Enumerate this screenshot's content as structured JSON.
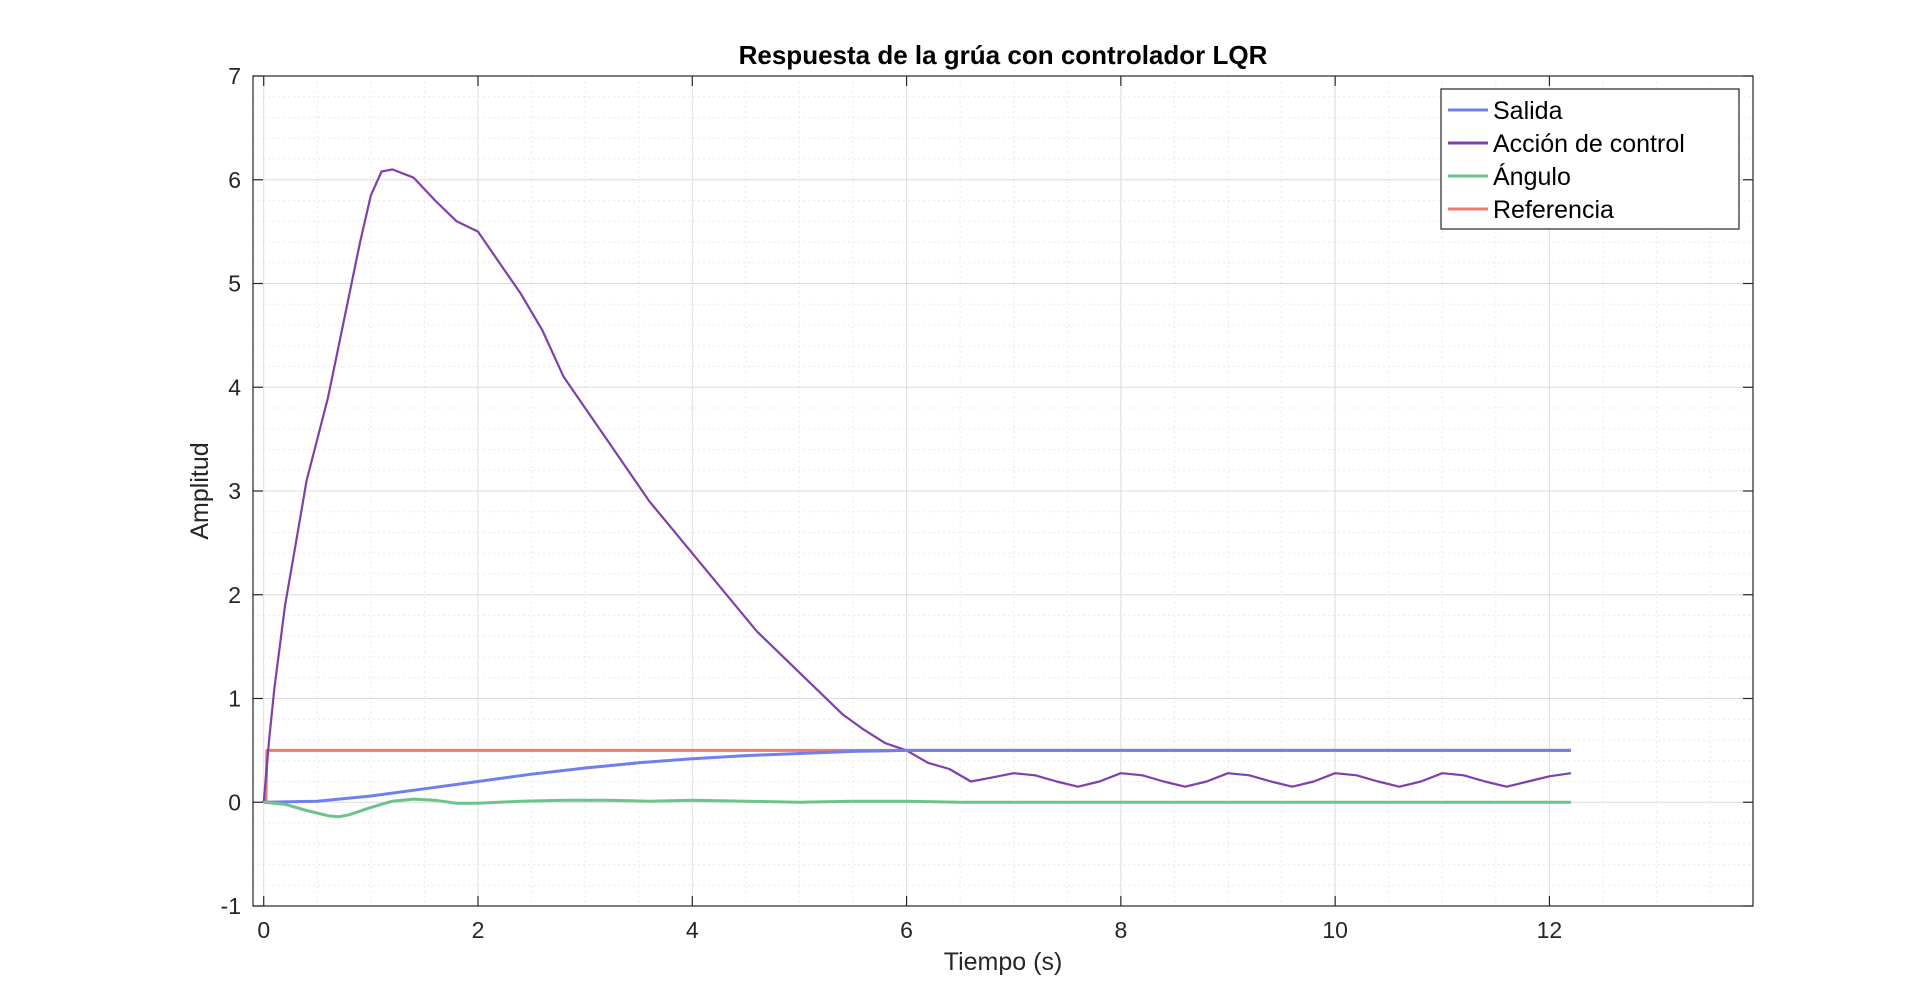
{
  "chart_data": {
    "type": "line",
    "title": "Respuesta de la grúa con controlador LQR",
    "xlabel": "Tiempo (s)",
    "ylabel": "Amplitud",
    "xlim": [
      -0.1,
      13.9
    ],
    "ylim": [
      -1,
      7
    ],
    "xticks": [
      0,
      2,
      4,
      6,
      8,
      10,
      12
    ],
    "yticks": [
      -1,
      0,
      1,
      2,
      3,
      4,
      5,
      6,
      7
    ],
    "grid": true,
    "minor_grid": true,
    "legend_position": "top-right",
    "series": [
      {
        "name": "Salida",
        "color": "#6f7ff0",
        "x": [
          0,
          0.5,
          1,
          1.5,
          2,
          2.5,
          3,
          3.5,
          4,
          4.5,
          5,
          5.5,
          6,
          6.5,
          7,
          8,
          9,
          10,
          11,
          12.2
        ],
        "y": [
          0,
          0.01,
          0.06,
          0.13,
          0.2,
          0.27,
          0.33,
          0.38,
          0.42,
          0.45,
          0.47,
          0.49,
          0.5,
          0.5,
          0.5,
          0.5,
          0.5,
          0.5,
          0.5,
          0.5
        ]
      },
      {
        "name": "Acción de control",
        "color": "#7e3fb0",
        "x": [
          0,
          0.05,
          0.1,
          0.2,
          0.3,
          0.4,
          0.5,
          0.6,
          0.7,
          0.8,
          0.9,
          1.0,
          1.1,
          1.2,
          1.4,
          1.6,
          1.8,
          2.0,
          2.2,
          2.4,
          2.6,
          2.8,
          3.0,
          3.2,
          3.4,
          3.6,
          3.8,
          4.0,
          4.2,
          4.4,
          4.6,
          4.8,
          5.0,
          5.2,
          5.4,
          5.6,
          5.8,
          6.0,
          6.2,
          6.4,
          6.6,
          6.8,
          7.0,
          7.2,
          7.4,
          7.6,
          7.8,
          8.0,
          8.2,
          8.4,
          8.6,
          8.8,
          9.0,
          9.2,
          9.4,
          9.6,
          9.8,
          10.0,
          10.2,
          10.4,
          10.6,
          10.8,
          11.0,
          11.2,
          11.4,
          11.6,
          11.8,
          12.0,
          12.2
        ],
        "y": [
          0,
          0.6,
          1.1,
          1.9,
          2.5,
          3.1,
          3.5,
          3.9,
          4.4,
          4.9,
          5.4,
          5.85,
          6.08,
          6.1,
          6.02,
          5.8,
          5.6,
          5.5,
          5.2,
          4.9,
          4.55,
          4.1,
          3.8,
          3.5,
          3.2,
          2.9,
          2.65,
          2.4,
          2.15,
          1.9,
          1.65,
          1.45,
          1.25,
          1.05,
          0.85,
          0.7,
          0.57,
          0.5,
          0.38,
          0.32,
          0.2,
          0.24,
          0.28,
          0.26,
          0.2,
          0.15,
          0.2,
          0.28,
          0.26,
          0.2,
          0.15,
          0.2,
          0.28,
          0.26,
          0.2,
          0.15,
          0.2,
          0.28,
          0.26,
          0.2,
          0.15,
          0.2,
          0.28,
          0.26,
          0.2,
          0.15,
          0.2,
          0.25,
          0.28
        ]
      },
      {
        "name": "Ángulo",
        "color": "#6cc48a",
        "x": [
          0,
          0.2,
          0.4,
          0.6,
          0.7,
          0.8,
          1.0,
          1.2,
          1.4,
          1.6,
          1.8,
          2.0,
          2.4,
          2.8,
          3.2,
          3.6,
          4.0,
          4.5,
          5.0,
          5.5,
          6.0,
          6.5,
          7.0,
          7.5,
          8.0,
          8.5,
          9.0,
          9.5,
          10.0,
          10.5,
          11.0,
          11.5,
          12.0,
          12.2
        ],
        "y": [
          0,
          -0.02,
          -0.08,
          -0.13,
          -0.14,
          -0.12,
          -0.05,
          0.01,
          0.03,
          0.02,
          -0.01,
          -0.01,
          0.01,
          0.02,
          0.02,
          0.01,
          0.02,
          0.01,
          0.0,
          0.01,
          0.01,
          0.0,
          0.0,
          0.0,
          0.0,
          0.0,
          0.0,
          0.0,
          0.0,
          0.0,
          0.0,
          0.0,
          0.0,
          0.0
        ]
      },
      {
        "name": "Referencia",
        "color": "#f0796b",
        "x": [
          0,
          0.02,
          0.03,
          12.2
        ],
        "y": [
          0,
          0,
          0.5,
          0.5
        ]
      }
    ]
  }
}
